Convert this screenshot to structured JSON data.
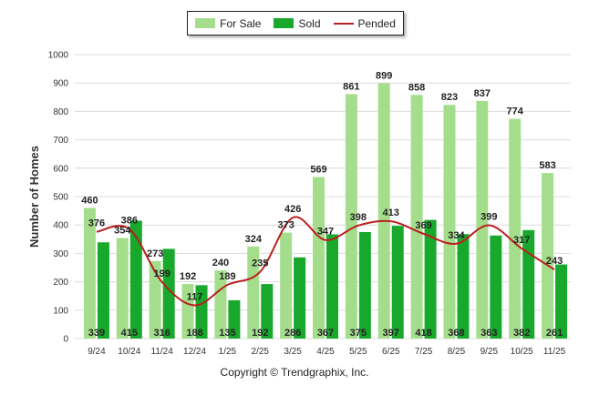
{
  "legend": {
    "items": [
      {
        "label": "For Sale",
        "color": "#a4de8c"
      },
      {
        "label": "Sold",
        "color": "#18a82c"
      },
      {
        "label": "Pended",
        "color": "#bb1e1e"
      }
    ]
  },
  "copyright": "Copyright © Trendgraphix, Inc.",
  "chart_data": {
    "type": "bar",
    "title": "",
    "xlabel": "",
    "ylabel": "Number of Homes",
    "ylim": [
      0,
      1000
    ],
    "yticks": [
      0,
      100,
      200,
      300,
      400,
      500,
      600,
      700,
      800,
      900,
      1000
    ],
    "grid": true,
    "legend_position": "top-center",
    "categories": [
      "9/24",
      "10/24",
      "11/24",
      "12/24",
      "1/25",
      "2/25",
      "3/25",
      "4/25",
      "5/25",
      "6/25",
      "7/25",
      "8/25",
      "9/25",
      "10/25",
      "11/25"
    ],
    "series": [
      {
        "name": "For Sale",
        "kind": "bar",
        "color": "#a4de8c",
        "values": [
          460,
          354,
          273,
          192,
          240,
          324,
          373,
          569,
          861,
          899,
          858,
          823,
          837,
          774,
          583
        ]
      },
      {
        "name": "Sold",
        "kind": "bar",
        "color": "#18a82c",
        "values": [
          339,
          415,
          316,
          188,
          135,
          192,
          286,
          367,
          375,
          397,
          418,
          368,
          363,
          382,
          261
        ]
      },
      {
        "name": "Pended",
        "kind": "line",
        "color": "#bb1e1e",
        "values": [
          376,
          386,
          199,
          117,
          189,
          235,
          426,
          347,
          398,
          413,
          369,
          334,
          399,
          317,
          243
        ]
      }
    ]
  }
}
